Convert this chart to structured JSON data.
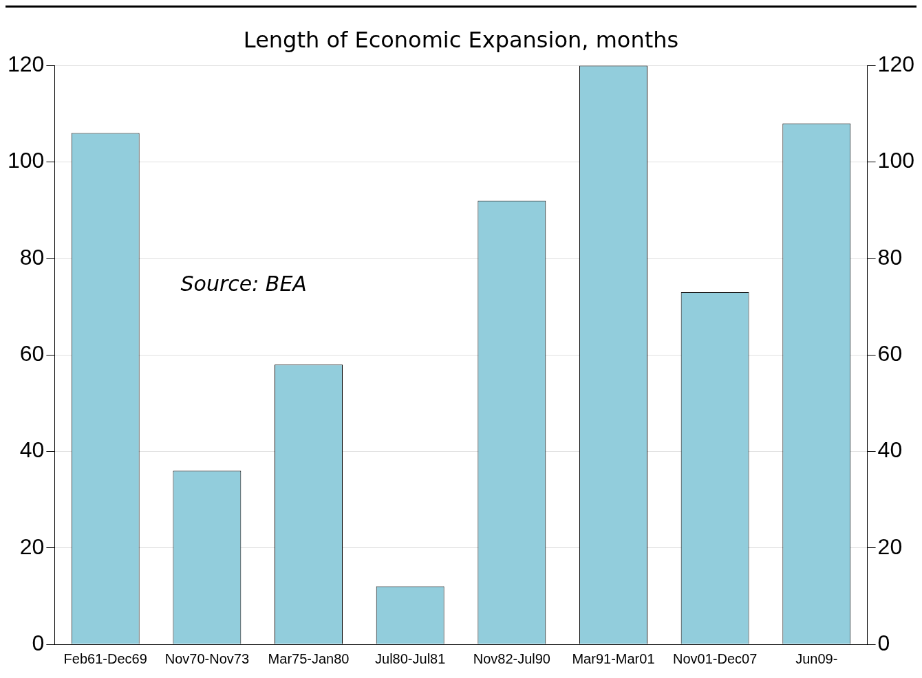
{
  "chart_data": {
    "type": "bar",
    "title": "Length of Economic Expansion, months",
    "categories": [
      "Feb61-Dec69",
      "Nov70-Nov73",
      "Mar75-Jan80",
      "Jul80-Jul81",
      "Nov82-Jul90",
      "Mar91-Mar01",
      "Nov01-Dec07",
      "Jun09-"
    ],
    "values": [
      106,
      36,
      58,
      12,
      92,
      120,
      73,
      108
    ],
    "color": "#92cddc",
    "ylim": [
      0,
      120
    ],
    "yticks": [
      0,
      20,
      40,
      60,
      80,
      100,
      120
    ],
    "y2lim": [
      0,
      120
    ],
    "y2ticks": [
      0,
      20,
      40,
      60,
      80,
      100,
      120
    ],
    "grid": "y",
    "annotations": [
      "Source: BEA"
    ]
  }
}
